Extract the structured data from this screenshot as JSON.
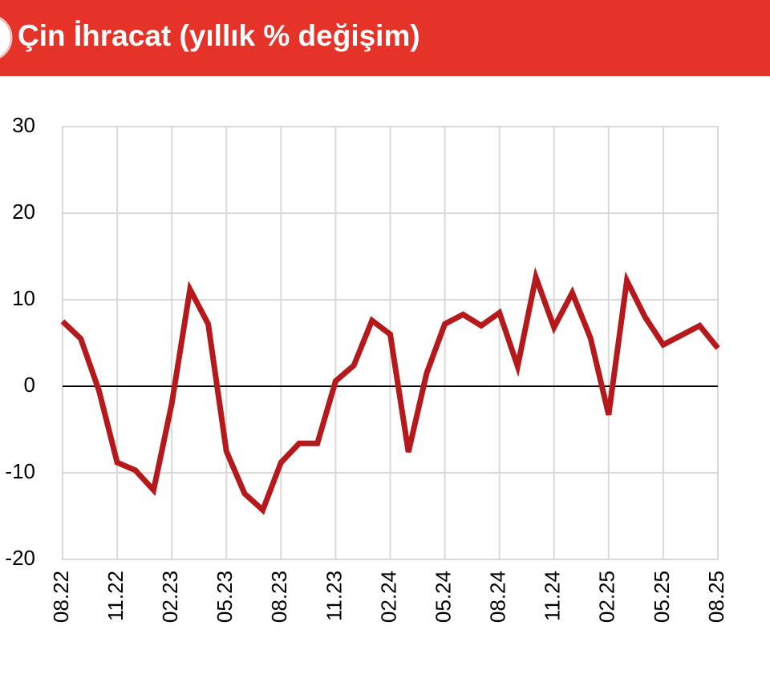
{
  "chart_data": {
    "type": "line",
    "title": "Çin İhracat (yıllık % değişim)",
    "categories": [
      "08.22",
      null,
      null,
      "11.22",
      null,
      null,
      "02.23",
      null,
      null,
      "05.23",
      null,
      null,
      "08.23",
      null,
      null,
      "11.23",
      null,
      null,
      "02.24",
      null,
      null,
      "05.24",
      null,
      null,
      "08.24",
      null,
      null,
      "11.24",
      null,
      null,
      "02.25",
      null,
      null,
      "05.25",
      null,
      null,
      "08.25"
    ],
    "series": [
      {
        "color": "#b5191b",
        "values": [
          7.5,
          5.5,
          -0.5,
          -8.8,
          -9.7,
          -12,
          -2,
          11.2,
          7.2,
          -7.5,
          -12.4,
          -14.3,
          -8.8,
          -6.6,
          -6.6,
          0.6,
          2.4,
          7.6,
          6.0,
          -7.6,
          1.5,
          7.2,
          8.3,
          7.0,
          8.5,
          2.3,
          12.6,
          6.8,
          10.8,
          5.6,
          -3.3,
          12.2,
          8.0,
          4.8,
          5.9,
          7.0,
          4.4
        ]
      }
    ],
    "ylim": [
      -20,
      30
    ],
    "yticks": [
      -20,
      -10,
      0,
      10,
      20,
      30
    ],
    "grid": true
  }
}
